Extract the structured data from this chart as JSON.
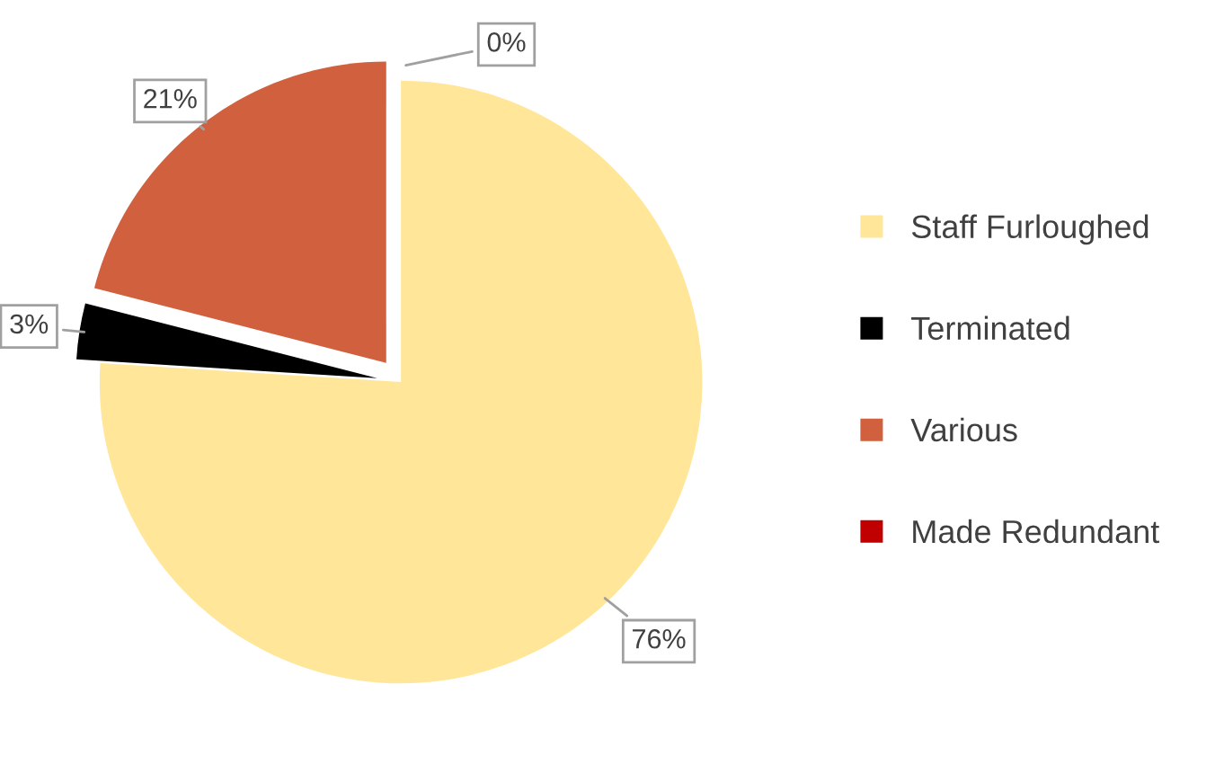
{
  "chart_data": {
    "type": "pie",
    "categories": [
      "Staff Furloughed",
      "Terminated",
      "Various",
      "Made Redundant"
    ],
    "values": [
      76,
      3,
      21,
      0
    ],
    "colors": [
      "#ffe699",
      "#000000",
      "#d0603e",
      "#c00000"
    ],
    "value_labels": [
      "76%",
      "3%",
      "21%",
      "0%"
    ],
    "legend": "right"
  }
}
